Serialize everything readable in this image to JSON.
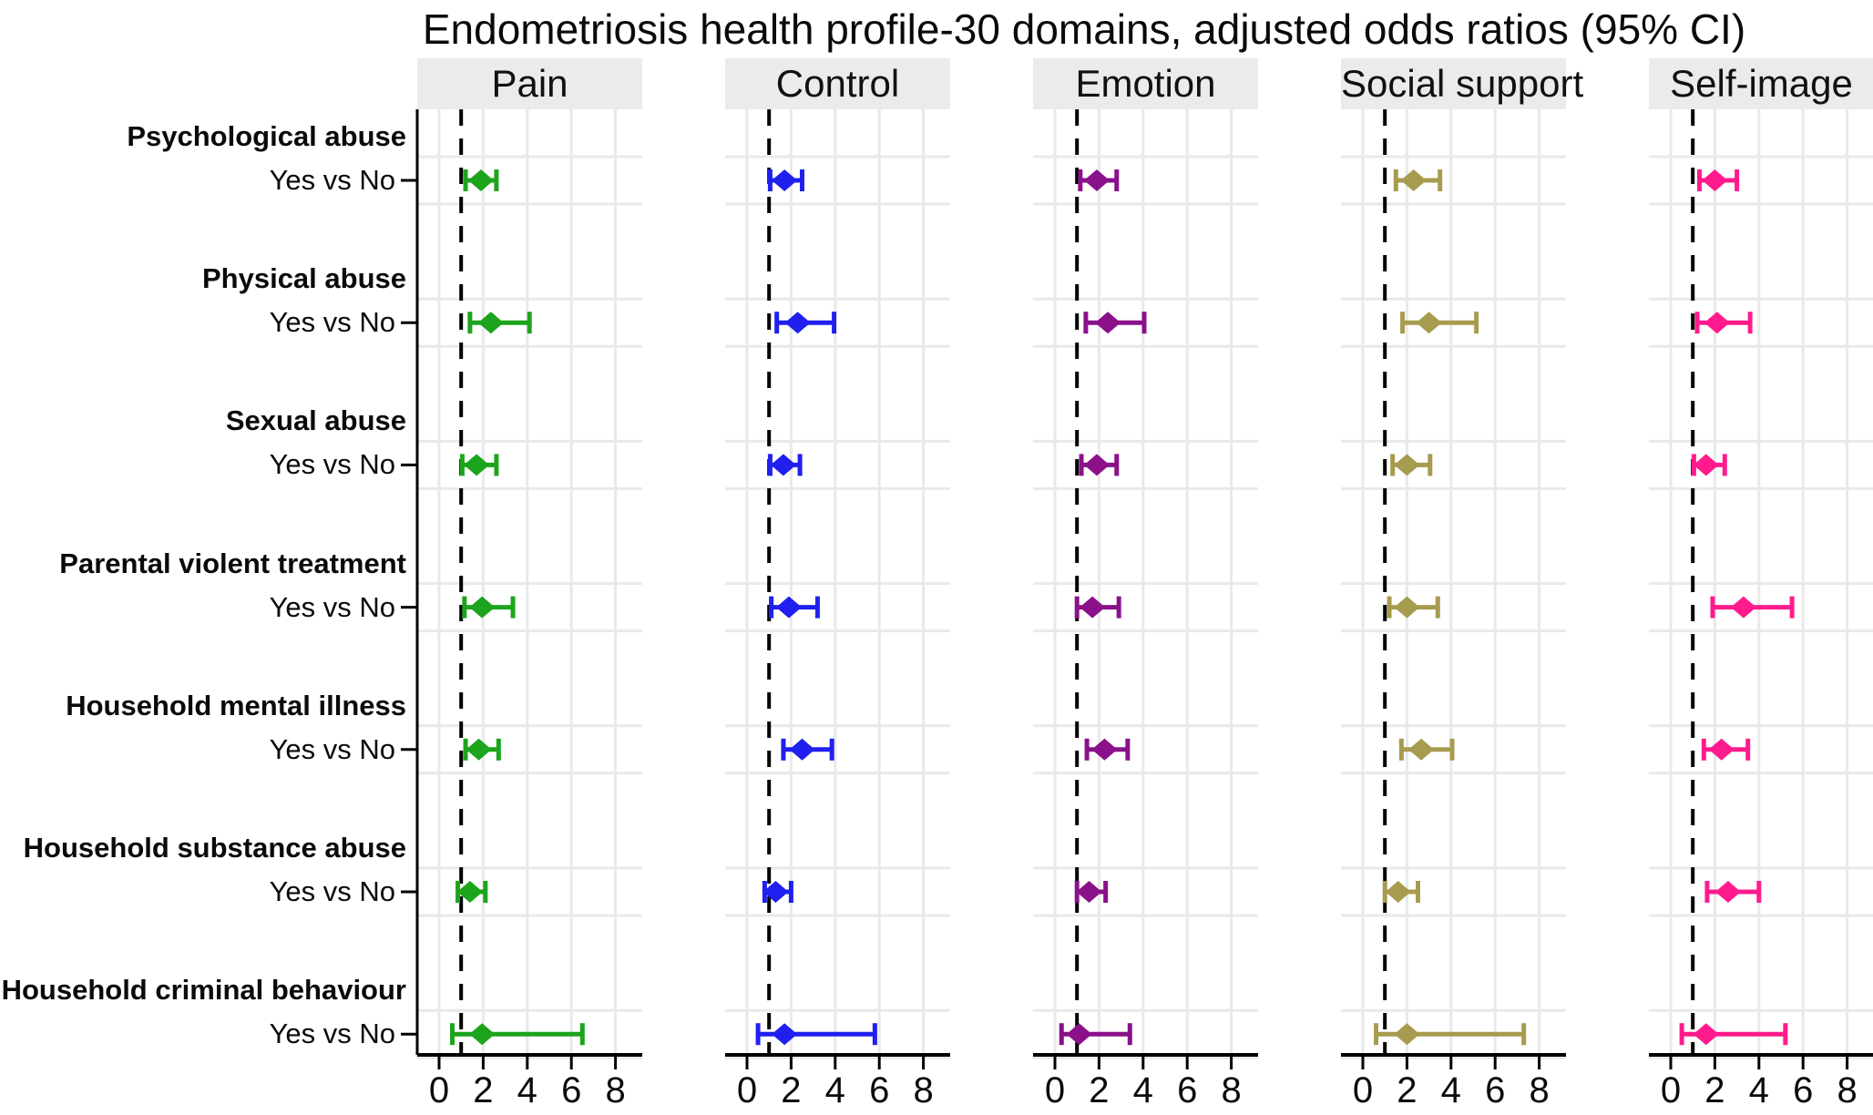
{
  "chart_data": {
    "type": "scatter",
    "subtype": "forest-plot",
    "title": "Endometriosis health profile-30 domains, adjusted odds ratios (95% CI)",
    "x_ticks": [
      0,
      2,
      4,
      6,
      8
    ],
    "xlim": [
      0,
      9.2
    ],
    "reference_line_x": 1,
    "grid": true,
    "legend_position": "none",
    "panel_header_bg": "#ebebeb",
    "grid_color": "#e9e9e9",
    "axis_color": "#000000",
    "rows": [
      {
        "group": "Psychological abuse",
        "comparison": "Yes vs No"
      },
      {
        "group": "Physical abuse",
        "comparison": "Yes vs No"
      },
      {
        "group": "Sexual abuse",
        "comparison": "Yes vs No"
      },
      {
        "group": "Parental violent treatment",
        "comparison": "Yes vs No"
      },
      {
        "group": "Household mental illness",
        "comparison": "Yes vs No"
      },
      {
        "group": "Household substance abuse",
        "comparison": "Yes vs No"
      },
      {
        "group": "Household criminal behaviour",
        "comparison": "Yes vs No"
      }
    ],
    "panels": [
      {
        "label": "Pain",
        "color": "#1da41d",
        "estimates": [
          {
            "or": 1.9,
            "lo": 1.2,
            "hi": 2.6
          },
          {
            "or": 2.35,
            "lo": 1.4,
            "hi": 4.1
          },
          {
            "or": 1.7,
            "lo": 1.05,
            "hi": 2.6
          },
          {
            "or": 1.95,
            "lo": 1.15,
            "hi": 3.35
          },
          {
            "or": 1.8,
            "lo": 1.2,
            "hi": 2.7
          },
          {
            "or": 1.4,
            "lo": 0.85,
            "hi": 2.1
          },
          {
            "or": 1.95,
            "lo": 0.6,
            "hi": 6.5
          }
        ]
      },
      {
        "label": "Control",
        "color": "#2020ee",
        "estimates": [
          {
            "or": 1.7,
            "lo": 1.05,
            "hi": 2.5
          },
          {
            "or": 2.3,
            "lo": 1.35,
            "hi": 3.95
          },
          {
            "or": 1.65,
            "lo": 1.05,
            "hi": 2.4
          },
          {
            "or": 1.9,
            "lo": 1.1,
            "hi": 3.2
          },
          {
            "or": 2.5,
            "lo": 1.65,
            "hi": 3.85
          },
          {
            "or": 1.3,
            "lo": 0.8,
            "hi": 2.0
          },
          {
            "or": 1.7,
            "lo": 0.5,
            "hi": 5.8
          }
        ]
      },
      {
        "label": "Emotion",
        "color": "#8a118a",
        "estimates": [
          {
            "or": 1.9,
            "lo": 1.15,
            "hi": 2.8
          },
          {
            "or": 2.4,
            "lo": 1.4,
            "hi": 4.05
          },
          {
            "or": 1.9,
            "lo": 1.2,
            "hi": 2.8
          },
          {
            "or": 1.7,
            "lo": 1.0,
            "hi": 2.9
          },
          {
            "or": 2.25,
            "lo": 1.45,
            "hi": 3.3
          },
          {
            "or": 1.55,
            "lo": 1.0,
            "hi": 2.3
          },
          {
            "or": 1.1,
            "lo": 0.3,
            "hi": 3.4
          }
        ]
      },
      {
        "label": "Social support",
        "color": "#a79b4f",
        "estimates": [
          {
            "or": 2.3,
            "lo": 1.5,
            "hi": 3.5
          },
          {
            "or": 3.0,
            "lo": 1.8,
            "hi": 5.15
          },
          {
            "or": 2.0,
            "lo": 1.35,
            "hi": 3.05
          },
          {
            "or": 2.0,
            "lo": 1.2,
            "hi": 3.4
          },
          {
            "or": 2.65,
            "lo": 1.75,
            "hi": 4.05
          },
          {
            "or": 1.6,
            "lo": 1.0,
            "hi": 2.5
          },
          {
            "or": 2.0,
            "lo": 0.6,
            "hi": 7.3
          }
        ]
      },
      {
        "label": "Self-image",
        "color": "#ff1b8d",
        "estimates": [
          {
            "or": 2.0,
            "lo": 1.3,
            "hi": 3.0
          },
          {
            "or": 2.1,
            "lo": 1.2,
            "hi": 3.6
          },
          {
            "or": 1.6,
            "lo": 1.05,
            "hi": 2.45
          },
          {
            "or": 3.3,
            "lo": 1.9,
            "hi": 5.5
          },
          {
            "or": 2.3,
            "lo": 1.5,
            "hi": 3.5
          },
          {
            "or": 2.6,
            "lo": 1.65,
            "hi": 4.0
          },
          {
            "or": 1.6,
            "lo": 0.5,
            "hi": 5.2
          }
        ]
      }
    ]
  }
}
